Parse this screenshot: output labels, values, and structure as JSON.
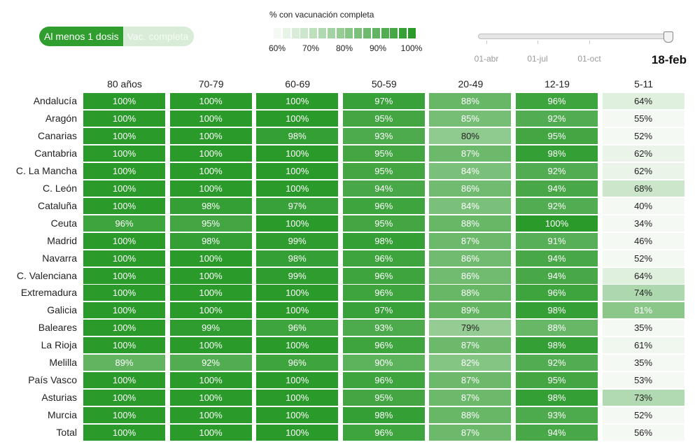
{
  "toggle": {
    "option_active": "Al menos 1 dosis",
    "option_inactive": "Vac. completa"
  },
  "legend": {
    "title": "% con vacunación completa",
    "ticks": [
      "60%",
      "70%",
      "80%",
      "90%",
      "100%"
    ],
    "range": [
      60,
      100
    ]
  },
  "slider": {
    "labels": [
      "01-abr",
      "01-jul",
      "01-oct"
    ],
    "current_date": "18-feb"
  },
  "colors": {
    "accent": "#2f9e2f",
    "low": "#f4f9f3",
    "high": "#2a9a2a",
    "text_dark": "#222222",
    "text_light": "#ffffff"
  },
  "chart_data": {
    "type": "heatmap",
    "columns": [
      "80 años",
      "70-79",
      "60-69",
      "50-59",
      "20-49",
      "12-19",
      "5-11"
    ],
    "rows": [
      {
        "name": "Andalucía",
        "values": [
          100,
          100,
          100,
          97,
          88,
          96,
          64
        ]
      },
      {
        "name": "Aragón",
        "values": [
          100,
          100,
          100,
          95,
          85,
          92,
          55
        ]
      },
      {
        "name": "Canarias",
        "values": [
          100,
          100,
          98,
          93,
          80,
          95,
          52
        ]
      },
      {
        "name": "Cantabria",
        "values": [
          100,
          100,
          100,
          95,
          87,
          98,
          62
        ]
      },
      {
        "name": "C. La Mancha",
        "values": [
          100,
          100,
          100,
          95,
          84,
          92,
          62
        ]
      },
      {
        "name": "C. León",
        "values": [
          100,
          100,
          100,
          94,
          86,
          94,
          68
        ]
      },
      {
        "name": "Cataluña",
        "values": [
          100,
          98,
          97,
          96,
          84,
          92,
          40
        ]
      },
      {
        "name": "Ceuta",
        "values": [
          96,
          95,
          100,
          95,
          88,
          100,
          34
        ]
      },
      {
        "name": "Madrid",
        "values": [
          100,
          98,
          99,
          98,
          87,
          91,
          46
        ]
      },
      {
        "name": "Navarra",
        "values": [
          100,
          100,
          98,
          96,
          86,
          94,
          52
        ]
      },
      {
        "name": "C. Valenciana",
        "values": [
          100,
          100,
          99,
          96,
          86,
          94,
          64
        ]
      },
      {
        "name": "Extremadura",
        "values": [
          100,
          100,
          100,
          96,
          88,
          96,
          74
        ]
      },
      {
        "name": "Galicia",
        "values": [
          100,
          100,
          100,
          97,
          89,
          98,
          81
        ]
      },
      {
        "name": "Baleares",
        "values": [
          100,
          99,
          96,
          93,
          79,
          88,
          35
        ]
      },
      {
        "name": "La Rioja",
        "values": [
          100,
          100,
          100,
          96,
          87,
          98,
          61
        ]
      },
      {
        "name": "Melilla",
        "values": [
          89,
          92,
          96,
          90,
          82,
          92,
          35
        ]
      },
      {
        "name": "País Vasco",
        "values": [
          100,
          100,
          100,
          96,
          87,
          95,
          53
        ]
      },
      {
        "name": "Asturias",
        "values": [
          100,
          100,
          100,
          95,
          87,
          98,
          73
        ]
      },
      {
        "name": "Murcia",
        "values": [
          100,
          100,
          100,
          98,
          88,
          93,
          52
        ]
      },
      {
        "name": "Total",
        "values": [
          100,
          100,
          100,
          96,
          87,
          94,
          56
        ]
      }
    ],
    "value_suffix": "%",
    "color_scale": [
      60,
      100
    ]
  }
}
